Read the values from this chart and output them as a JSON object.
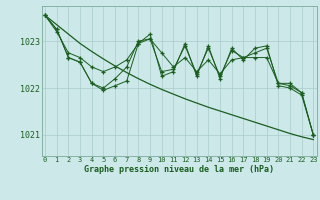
{
  "title": "Graphe pression niveau de la mer (hPa)",
  "bg_color": "#cce8e8",
  "grid_color_major": "#aacccc",
  "grid_color_minor": "#bbdddd",
  "line_color": "#1a5e20",
  "xlim": [
    0,
    23
  ],
  "ylim": [
    1020.55,
    1023.75
  ],
  "yticks": [
    1021,
    1022,
    1023
  ],
  "xticks": [
    0,
    1,
    2,
    3,
    4,
    5,
    6,
    7,
    8,
    9,
    10,
    11,
    12,
    13,
    14,
    15,
    16,
    17,
    18,
    19,
    20,
    21,
    22,
    23
  ],
  "smooth_line": [
    1023.55,
    1023.35,
    1023.15,
    1022.95,
    1022.78,
    1022.62,
    1022.47,
    1022.33,
    1022.2,
    1022.08,
    1021.97,
    1021.87,
    1021.77,
    1021.68,
    1021.59,
    1021.51,
    1021.43,
    1021.35,
    1021.27,
    1021.19,
    1021.11,
    1021.03,
    1020.96,
    1020.9
  ],
  "series1": [
    1023.55,
    1023.2,
    1022.75,
    1022.65,
    1022.45,
    1022.35,
    1022.45,
    1022.6,
    1022.95,
    1023.05,
    1022.75,
    1022.45,
    1022.65,
    1022.35,
    1022.6,
    1022.3,
    1022.6,
    1022.65,
    1022.65,
    1022.65,
    1022.1,
    1022.05,
    1021.9,
    1021.0
  ],
  "series2": [
    1023.55,
    1023.25,
    1022.65,
    1022.55,
    1022.1,
    1022.0,
    1022.2,
    1022.45,
    1023.0,
    1023.05,
    1022.35,
    1022.4,
    1022.9,
    1022.3,
    1022.85,
    1022.25,
    1022.8,
    1022.65,
    1022.75,
    1022.85,
    1022.1,
    1022.1,
    1021.9,
    1021.0
  ],
  "series3": [
    1023.55,
    1023.25,
    1022.65,
    1022.55,
    1022.1,
    1021.95,
    1022.05,
    1022.15,
    1022.95,
    1023.15,
    1022.25,
    1022.35,
    1022.95,
    1022.25,
    1022.9,
    1022.2,
    1022.85,
    1022.6,
    1022.85,
    1022.9,
    1022.05,
    1022.0,
    1021.85,
    1021.0
  ]
}
